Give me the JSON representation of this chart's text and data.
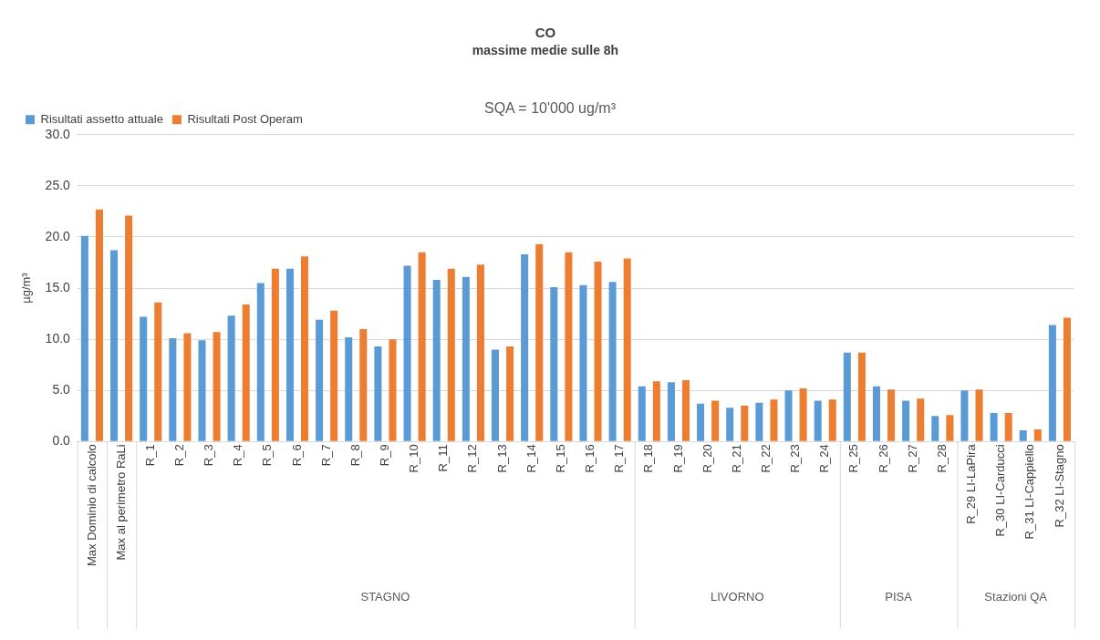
{
  "chart_data": {
    "type": "bar",
    "title": "CO",
    "subtitle": "massime medie sulle 8h",
    "ylabel": "µg/m³",
    "categories": [
      "Max Dominio di calcolo",
      "Max al perimetro RaLi",
      "R_1",
      "R_2",
      "R_3",
      "R_4",
      "R_5",
      "R_6",
      "R_7",
      "R_8",
      "R_9",
      "R_10",
      "R_11",
      "R_12",
      "R_13",
      "R_14",
      "R_15",
      "R_16",
      "R_17",
      "R_18",
      "R_19",
      "R_20",
      "R_21",
      "R_22",
      "R_23",
      "R_24",
      "R_25",
      "R_26",
      "R_27",
      "R_28",
      "R_29 LI-LaPira",
      "R_30 LI-Carducci",
      "R_31 LI-Cappiello",
      "R_32 LI-Stagno"
    ],
    "series": [
      {
        "name": "Risultati assetto attuale",
        "color": "#5b9bd5",
        "values": [
          20.1,
          18.7,
          12.2,
          10.1,
          9.9,
          12.3,
          15.5,
          16.9,
          11.9,
          10.2,
          9.3,
          17.2,
          15.8,
          16.1,
          9.0,
          18.3,
          15.1,
          15.3,
          15.6,
          5.4,
          5.8,
          3.7,
          3.3,
          3.8,
          5.0,
          4.0,
          8.7,
          5.4,
          4.0,
          2.5,
          5.0,
          2.8,
          1.1,
          11.4
        ]
      },
      {
        "name": "Risultati Post Operam",
        "color": "#ed7d31",
        "values": [
          22.7,
          22.1,
          13.6,
          10.6,
          10.7,
          13.4,
          16.9,
          18.1,
          12.8,
          11.0,
          10.0,
          18.5,
          16.9,
          17.3,
          9.3,
          19.3,
          18.5,
          17.6,
          17.9,
          5.9,
          6.0,
          4.0,
          3.5,
          4.1,
          5.2,
          4.1,
          8.7,
          5.1,
          4.2,
          2.6,
          5.1,
          2.8,
          1.2,
          12.1
        ]
      }
    ],
    "ylim": [
      0,
      30
    ],
    "yticks": [
      {
        "value": 0,
        "label": "0.0"
      },
      {
        "value": 5,
        "label": "5.0"
      },
      {
        "value": 10,
        "label": "10.0"
      },
      {
        "value": 15,
        "label": "15.0"
      },
      {
        "value": 20,
        "label": "20.0"
      },
      {
        "value": 25,
        "label": "25.0"
      },
      {
        "value": 30,
        "label": "30.0"
      }
    ],
    "grid": "y",
    "legend": "top left",
    "annotations": [
      "SQA = 10'000 ug/m³",
      "STAGNO",
      "LIVORNO",
      "PISA",
      "Stazioni QA"
    ]
  }
}
